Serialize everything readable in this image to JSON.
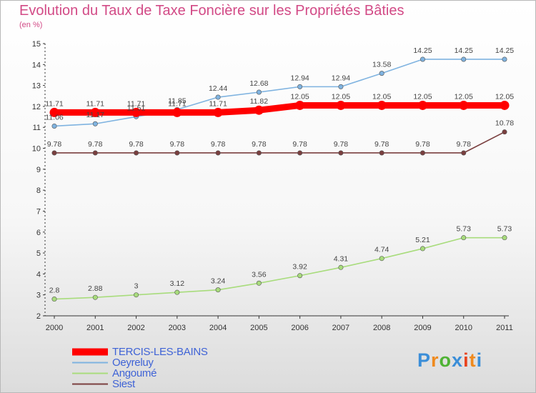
{
  "title": "Evolution du Taux de Taxe Foncière sur les Propriétés Bâties",
  "subtitle": "(en %)",
  "logo": {
    "text": "Proxiti",
    "colors": [
      "#3b8ed8",
      "#ef8a1e",
      "#4fb335",
      "#3b8ed8",
      "#e8441f",
      "#ef8a1e",
      "#3b8ed8"
    ]
  },
  "chart_data": {
    "type": "line",
    "x": [
      "2000",
      "2001",
      "2002",
      "2003",
      "2004",
      "2005",
      "2006",
      "2007",
      "2008",
      "2009",
      "2010",
      "2011"
    ],
    "ylim": [
      2,
      15
    ],
    "yticks": [
      "2",
      "3",
      "4",
      "5",
      "6",
      "7",
      "8",
      "9",
      "10",
      "11",
      "12",
      "13",
      "14",
      "15"
    ],
    "grid": false,
    "legend_position": "bottom-left",
    "series": [
      {
        "name": "TERCIS-LES-BAINS",
        "color": "#ff0000",
        "values": [
          11.71,
          11.71,
          11.71,
          11.71,
          11.71,
          11.82,
          12.05,
          12.05,
          12.05,
          12.05,
          12.05,
          12.05
        ],
        "labels": [
          "11.71",
          "11.71",
          "11.71",
          "11.71",
          "11.71",
          "11.82",
          "12.05",
          "12.05",
          "12.05",
          "12.05",
          "12.05",
          "12.05"
        ]
      },
      {
        "name": "Oeyreluy",
        "color": "#7fb3e0",
        "values": [
          11.06,
          11.17,
          11.51,
          11.85,
          12.44,
          12.68,
          12.94,
          12.94,
          13.58,
          14.25,
          14.25,
          14.25
        ],
        "labels": [
          "11.06",
          "11.17",
          "11.51",
          "11.85",
          "12.44",
          "12.68",
          "12.94",
          "12.94",
          "13.58",
          "14.25",
          "14.25",
          "14.25"
        ]
      },
      {
        "name": "Angoumé",
        "color": "#a8dc7c",
        "values": [
          2.8,
          2.88,
          3.0,
          3.12,
          3.24,
          3.56,
          3.92,
          4.31,
          4.74,
          5.21,
          5.73,
          5.73
        ],
        "labels": [
          "2.8",
          "2.88",
          "3",
          "3.12",
          "3.24",
          "3.56",
          "3.92",
          "4.31",
          "4.74",
          "5.21",
          "5.73",
          "5.73"
        ]
      },
      {
        "name": "Siest",
        "color": "#7a3f3f",
        "values": [
          9.78,
          9.78,
          9.78,
          9.78,
          9.78,
          9.78,
          9.78,
          9.78,
          9.78,
          9.78,
          9.78,
          10.78
        ],
        "labels": [
          "9.78",
          "9.78",
          "9.78",
          "9.78",
          "9.78",
          "9.78",
          "9.78",
          "9.78",
          "9.78",
          "9.78",
          "9.78",
          "10.78"
        ]
      }
    ]
  }
}
